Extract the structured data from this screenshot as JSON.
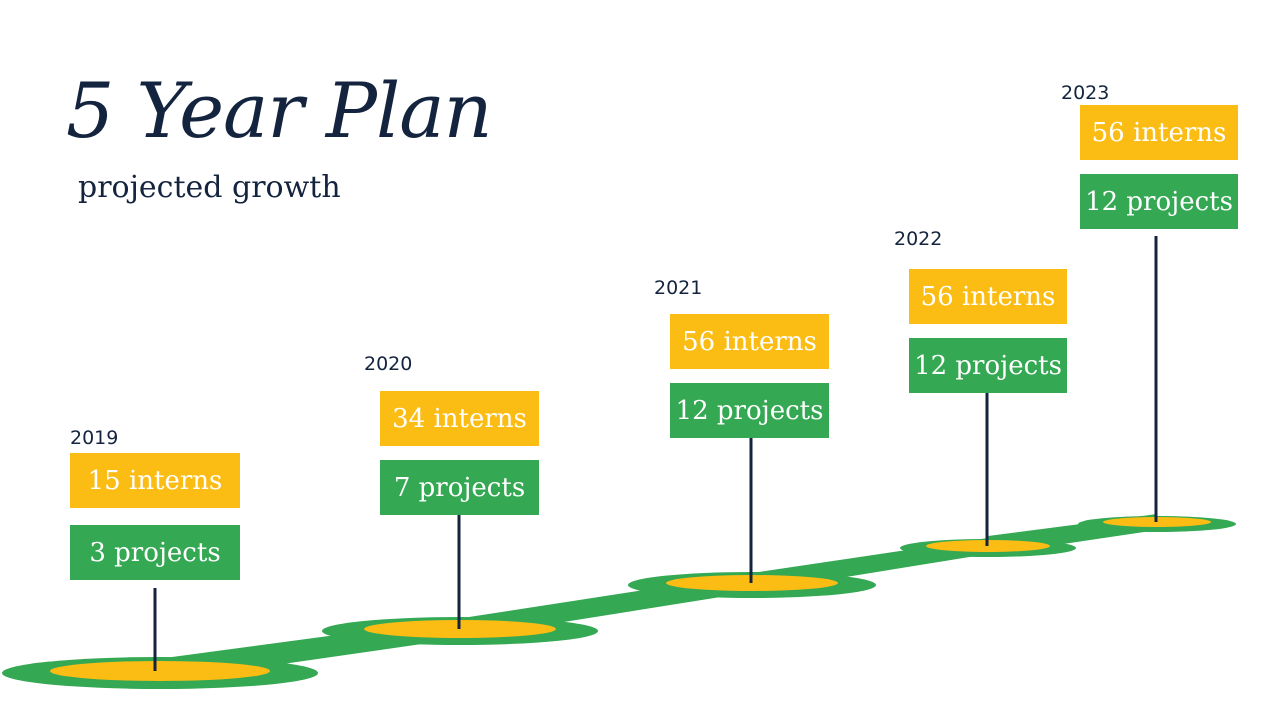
{
  "title": "5 Year Plan",
  "subtitle": "projected growth",
  "colors": {
    "interns_box": "#fbbc14",
    "projects_box": "#34a853",
    "road": "#34a853",
    "stop": "#fbbc14",
    "pole": "#14243f",
    "text": "#14243f"
  },
  "milestones": [
    {
      "year": "2019",
      "interns": "15 interns",
      "projects": "3 projects"
    },
    {
      "year": "2020",
      "interns": "34 interns",
      "projects": "7 projects"
    },
    {
      "year": "2021",
      "interns": "56 interns",
      "projects": "12 projects"
    },
    {
      "year": "2022",
      "interns": "56 interns",
      "projects": "12 projects"
    },
    {
      "year": "2023",
      "interns": "56 interns",
      "projects": "12 projects"
    }
  ]
}
